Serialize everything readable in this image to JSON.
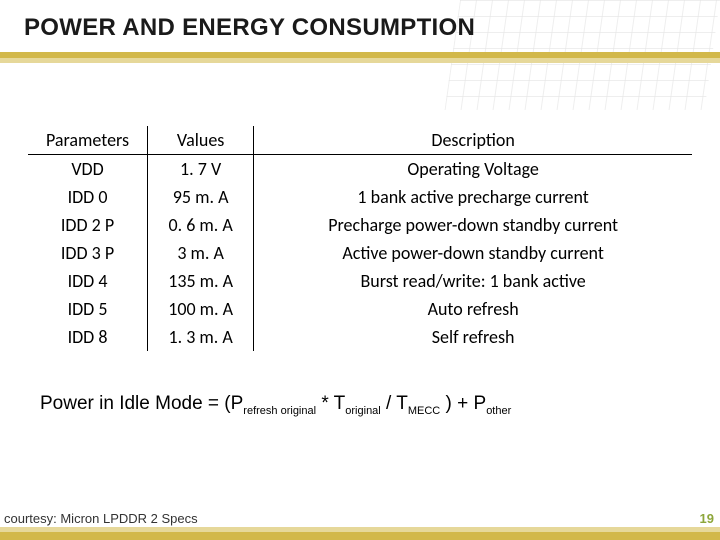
{
  "colors": {
    "accent_primary": "#d2b84a",
    "accent_secondary": "#e6d89a",
    "pagenum_color": "#8da63a",
    "text": "#000000",
    "grid": "rgba(200,200,200,0.6)"
  },
  "title": "POWER AND ENERGY CONSUMPTION",
  "table": {
    "headers": [
      "Parameters",
      "Values",
      "Description"
    ],
    "rows": [
      [
        "VDD",
        "1. 7 V",
        "Operating Voltage"
      ],
      [
        "IDD 0",
        "95 m. A",
        "1 bank active precharge current"
      ],
      [
        "IDD 2 P",
        "0. 6 m. A",
        "Precharge power-down standby current"
      ],
      [
        "IDD 3 P",
        "3 m. A",
        "Active power-down standby current"
      ],
      [
        "IDD 4",
        "135 m. A",
        "Burst read/write: 1 bank active"
      ],
      [
        "IDD 5",
        "100 m. A",
        "Auto refresh"
      ],
      [
        "IDD 8",
        "1. 3 m. A",
        "Self refresh"
      ]
    ]
  },
  "formula": {
    "prefix": "Power in Idle Mode = (P",
    "sub1": "refresh original",
    "mid1": " * T",
    "sub2": "original",
    "mid2": " / T",
    "sub3": "MECC",
    "mid3": " ) + P",
    "sub4": "other"
  },
  "footer": {
    "courtesy": "courtesy: Micron LPDDR 2 Specs",
    "page": "19"
  }
}
